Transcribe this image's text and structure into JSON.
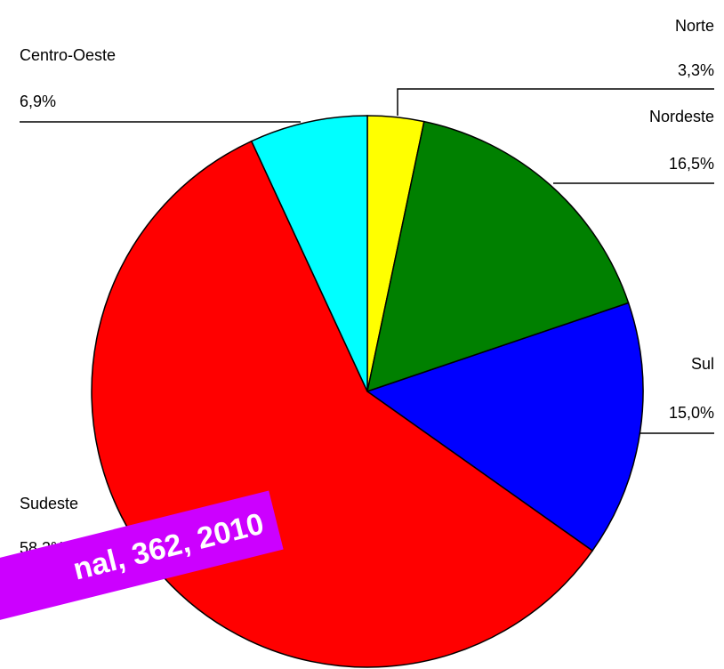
{
  "chart_data": {
    "type": "pie",
    "categories": [
      "Norte",
      "Nordeste",
      "Sul",
      "Sudeste",
      "Centro-Oeste"
    ],
    "values": [
      3.3,
      16.5,
      15.0,
      58.3,
      6.9
    ],
    "value_labels": [
      "3,3%",
      "16,5%",
      "15,0%",
      "58,3%",
      "6,9%"
    ],
    "colors": [
      "#ffff00",
      "#008000",
      "#0000ff",
      "#ff0000",
      "#00ffff"
    ],
    "annotation": "nal, 362, 2010"
  }
}
